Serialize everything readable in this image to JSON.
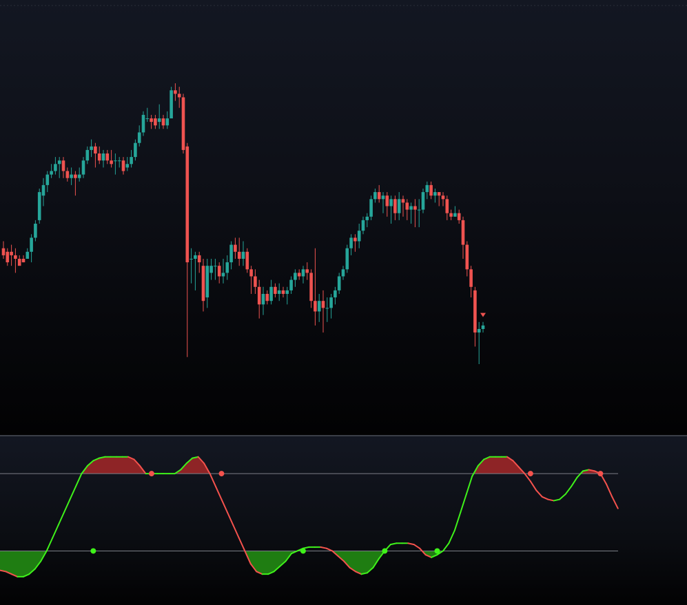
{
  "colors": {
    "bull": "#26a69a",
    "bear": "#ef5350",
    "osc_up": "#3ff21a",
    "osc_down": "#f4524d",
    "fill_high": "#8e2426",
    "fill_low": "#1f7d12",
    "level_line": "#7c7f87"
  },
  "chart_data": [
    {
      "type": "candlestick",
      "title": "",
      "grid": false,
      "ylim": [
        0,
        100
      ],
      "candles": [
        [
          2,
          43,
          41,
          45,
          40
        ],
        [
          3,
          42,
          39,
          43,
          38
        ],
        [
          4,
          42,
          41,
          44,
          38
        ],
        [
          5,
          41,
          40,
          43,
          36
        ],
        [
          6,
          40,
          38,
          41,
          39
        ],
        [
          7,
          40,
          39,
          41,
          39
        ],
        [
          8,
          40,
          42,
          43,
          40
        ],
        [
          9,
          42,
          46,
          47,
          39
        ],
        [
          10,
          46,
          50,
          51,
          45
        ],
        [
          11,
          51,
          59,
          60,
          50
        ],
        [
          12,
          58,
          61,
          63,
          55
        ],
        [
          13,
          61,
          64,
          65,
          59
        ],
        [
          14,
          64,
          65,
          67,
          63
        ],
        [
          15,
          65,
          67,
          69,
          64
        ],
        [
          16,
          67,
          68,
          69,
          63
        ],
        [
          17,
          68,
          65,
          69,
          63
        ],
        [
          18,
          65,
          63,
          66,
          62
        ],
        [
          19,
          63,
          64,
          66,
          61
        ],
        [
          20,
          64,
          63,
          65,
          58
        ],
        [
          21,
          63,
          64,
          66,
          62
        ],
        [
          22,
          64,
          68,
          69,
          63
        ],
        [
          23,
          68,
          71,
          72,
          67
        ],
        [
          24,
          71,
          72,
          74,
          69
        ],
        [
          25,
          72,
          70,
          73,
          66
        ],
        [
          26,
          70,
          68,
          72,
          67
        ],
        [
          27,
          68,
          70,
          71,
          66
        ],
        [
          28,
          70,
          68,
          71,
          67
        ],
        [
          29,
          68,
          67,
          71,
          66
        ],
        [
          30,
          68,
          68,
          70,
          64
        ],
        [
          31,
          68,
          68,
          69,
          66
        ],
        [
          32,
          68,
          65,
          69,
          64
        ],
        [
          33,
          66,
          67,
          69,
          65
        ],
        [
          34,
          67,
          69,
          71,
          66
        ],
        [
          35,
          69,
          73,
          74,
          68
        ],
        [
          36,
          73,
          76,
          78,
          72
        ],
        [
          37,
          76,
          81,
          82,
          75
        ],
        [
          38,
          80,
          80,
          83,
          79
        ],
        [
          39,
          80,
          79,
          81,
          77
        ],
        [
          40,
          80,
          78,
          81,
          77
        ],
        [
          41,
          79,
          80,
          84,
          77
        ],
        [
          42,
          80,
          78,
          81,
          77
        ],
        [
          43,
          78,
          80,
          82,
          77
        ],
        [
          44,
          80,
          88,
          89,
          80
        ],
        [
          45,
          88,
          87,
          90,
          85
        ],
        [
          46,
          87,
          86,
          89,
          83
        ],
        [
          47,
          86,
          71,
          87,
          70
        ],
        [
          48,
          72,
          39,
          73,
          12
        ],
        [
          49,
          40,
          40,
          43,
          33
        ],
        [
          50,
          40,
          41,
          42,
          31
        ],
        [
          51,
          41,
          39,
          42,
          36
        ],
        [
          52,
          38,
          28,
          40,
          25
        ],
        [
          53,
          29,
          38,
          40,
          26
        ],
        [
          54,
          36,
          38,
          40,
          34
        ],
        [
          55,
          38,
          38,
          40,
          34
        ],
        [
          56,
          38,
          35,
          39,
          33
        ],
        [
          57,
          35,
          36,
          40,
          33
        ],
        [
          58,
          36,
          39,
          41,
          34
        ],
        [
          59,
          39,
          44,
          45,
          37
        ],
        [
          60,
          44,
          42,
          46,
          40
        ],
        [
          61,
          42,
          40,
          46,
          38
        ],
        [
          62,
          40,
          42,
          45,
          38
        ],
        [
          63,
          42,
          37,
          43,
          36
        ],
        [
          64,
          37,
          35,
          38,
          30
        ],
        [
          65,
          35,
          32,
          37,
          30
        ],
        [
          66,
          32,
          27,
          34,
          23
        ],
        [
          67,
          27,
          30,
          32,
          24
        ],
        [
          68,
          30,
          28,
          31,
          27
        ],
        [
          69,
          28,
          32,
          34,
          27
        ],
        [
          70,
          32,
          30,
          33,
          29
        ],
        [
          71,
          30,
          31,
          33,
          28
        ],
        [
          72,
          31,
          30,
          32,
          29
        ],
        [
          73,
          30,
          31,
          32,
          27
        ],
        [
          74,
          31,
          34,
          35,
          30
        ],
        [
          75,
          34,
          36,
          37,
          32
        ],
        [
          76,
          36,
          35,
          37,
          34
        ],
        [
          77,
          35,
          37,
          38,
          33
        ],
        [
          78,
          37,
          36,
          39,
          34
        ],
        [
          79,
          36,
          28,
          37,
          26
        ],
        [
          80,
          28,
          25,
          43,
          21
        ],
        [
          81,
          25,
          28,
          30,
          22
        ],
        [
          82,
          28,
          26,
          31,
          19
        ],
        [
          83,
          26,
          26,
          29,
          22
        ],
        [
          84,
          26,
          29,
          30,
          23
        ],
        [
          85,
          29,
          31,
          32,
          27
        ],
        [
          86,
          31,
          35,
          36,
          30
        ],
        [
          87,
          35,
          37,
          38,
          34
        ],
        [
          88,
          37,
          43,
          44,
          36
        ],
        [
          89,
          43,
          46,
          47,
          41
        ],
        [
          90,
          46,
          45,
          47,
          42
        ],
        [
          91,
          45,
          48,
          50,
          43
        ],
        [
          92,
          48,
          51,
          52,
          47
        ],
        [
          93,
          51,
          52,
          53,
          49
        ],
        [
          94,
          52,
          57,
          58,
          51
        ],
        [
          95,
          57,
          59,
          60,
          56
        ],
        [
          96,
          59,
          57,
          61,
          56
        ],
        [
          97,
          57,
          58,
          59,
          53
        ],
        [
          98,
          58,
          55,
          59,
          52
        ],
        [
          99,
          55,
          57,
          58,
          50
        ],
        [
          100,
          57,
          53,
          58,
          51
        ],
        [
          101,
          53,
          57,
          59,
          51
        ],
        [
          102,
          57,
          56,
          58,
          52
        ],
        [
          103,
          56,
          54,
          57,
          51
        ],
        [
          104,
          54,
          55,
          56,
          50
        ],
        [
          105,
          55,
          54,
          57,
          49
        ],
        [
          106,
          54,
          54,
          57,
          49
        ],
        [
          107,
          54,
          59,
          60,
          53
        ],
        [
          108,
          59,
          61,
          62,
          57
        ],
        [
          109,
          61,
          58,
          62,
          57
        ],
        [
          110,
          58,
          59,
          60,
          56
        ],
        [
          111,
          59,
          58,
          59,
          55
        ],
        [
          112,
          58,
          57,
          59,
          55
        ],
        [
          113,
          57,
          53,
          58,
          51
        ],
        [
          114,
          53,
          52,
          54,
          51
        ],
        [
          115,
          52,
          53,
          55,
          52
        ],
        [
          116,
          53,
          51,
          54,
          50
        ],
        [
          117,
          51,
          44,
          52,
          40
        ],
        [
          118,
          44,
          37,
          45,
          35
        ],
        [
          119,
          37,
          32,
          38,
          29
        ],
        [
          120,
          31,
          19,
          32,
          15
        ],
        [
          121,
          19,
          20,
          22,
          10
        ],
        [
          122,
          20,
          21,
          22,
          19
        ]
      ],
      "markers": [
        {
          "x": 122,
          "y": 24,
          "shape": "triangle-down"
        }
      ]
    },
    {
      "type": "line",
      "title": "",
      "grid": false,
      "ylim": [
        -15,
        95
      ],
      "levels": [
        80,
        20
      ],
      "series": [
        {
          "values": [
            [
              0,
              5
            ],
            [
              4,
              4
            ],
            [
              8,
              2
            ],
            [
              12,
              0
            ],
            [
              16,
              0
            ],
            [
              20,
              2
            ],
            [
              24,
              6
            ],
            [
              28,
              12
            ],
            [
              32,
              20
            ],
            [
              36,
              30
            ],
            [
              40,
              40
            ],
            [
              44,
              50
            ],
            [
              48,
              60
            ],
            [
              52,
              70
            ],
            [
              56,
              80
            ],
            [
              60,
              86
            ],
            [
              64,
              90
            ],
            [
              68,
              92
            ],
            [
              72,
              93
            ],
            [
              76,
              93
            ],
            [
              80,
              93
            ],
            [
              84,
              93
            ],
            [
              88,
              93
            ],
            [
              92,
              91
            ],
            [
              96,
              86
            ],
            [
              100,
              80
            ],
            [
              104,
              80
            ],
            [
              108,
              80
            ],
            [
              112,
              80
            ],
            [
              116,
              80
            ],
            [
              120,
              80
            ],
            [
              124,
              83
            ],
            [
              128,
              88
            ],
            [
              132,
              92
            ],
            [
              136,
              93
            ],
            [
              140,
              88
            ],
            [
              144,
              80
            ],
            [
              148,
              70
            ],
            [
              152,
              60
            ],
            [
              156,
              50
            ],
            [
              160,
              40
            ],
            [
              164,
              30
            ],
            [
              168,
              20
            ],
            [
              172,
              10
            ],
            [
              176,
              4
            ],
            [
              180,
              2
            ],
            [
              184,
              2
            ],
            [
              188,
              4
            ],
            [
              192,
              8
            ],
            [
              196,
              12
            ],
            [
              200,
              18
            ],
            [
              204,
              20
            ],
            [
              208,
              22
            ],
            [
              212,
              23
            ],
            [
              216,
              23
            ],
            [
              220,
              23
            ],
            [
              224,
              22
            ],
            [
              228,
              20
            ],
            [
              232,
              16
            ],
            [
              236,
              12
            ],
            [
              240,
              7
            ],
            [
              244,
              4
            ],
            [
              248,
              2
            ],
            [
              252,
              3
            ],
            [
              256,
              7
            ],
            [
              260,
              14
            ],
            [
              264,
              20
            ],
            [
              268,
              25
            ],
            [
              272,
              26
            ],
            [
              276,
              26
            ],
            [
              280,
              26
            ],
            [
              284,
              25
            ],
            [
              288,
              22
            ],
            [
              292,
              17
            ],
            [
              296,
              15
            ],
            [
              300,
              17
            ],
            [
              304,
              20
            ],
            [
              308,
              26
            ],
            [
              312,
              36
            ],
            [
              316,
              50
            ],
            [
              320,
              64
            ],
            [
              324,
              78
            ],
            [
              328,
              86
            ],
            [
              332,
              91
            ],
            [
              336,
              93
            ],
            [
              340,
              93
            ],
            [
              344,
              93
            ],
            [
              348,
              93
            ],
            [
              352,
              90
            ],
            [
              356,
              85
            ],
            [
              360,
              80
            ],
            [
              364,
              74
            ],
            [
              368,
              67
            ],
            [
              372,
              62
            ],
            [
              376,
              60
            ],
            [
              380,
              59
            ],
            [
              384,
              60
            ],
            [
              388,
              64
            ],
            [
              392,
              70
            ],
            [
              396,
              77
            ],
            [
              400,
              82
            ],
            [
              404,
              83
            ],
            [
              408,
              82
            ],
            [
              412,
              80
            ],
            [
              416,
              72
            ],
            [
              420,
              62
            ],
            [
              424,
              53
            ]
          ]
        }
      ],
      "signals": [
        {
          "x": 64,
          "y": 20,
          "type": "buy"
        },
        {
          "x": 104,
          "y": 80,
          "type": "sell"
        },
        {
          "x": 152,
          "y": 80,
          "type": "sell"
        },
        {
          "x": 208,
          "y": 20,
          "type": "buy"
        },
        {
          "x": 264,
          "y": 20,
          "type": "buy"
        },
        {
          "x": 300,
          "y": 20,
          "type": "buy"
        },
        {
          "x": 364,
          "y": 80,
          "type": "sell"
        },
        {
          "x": 412,
          "y": 80,
          "type": "sell"
        }
      ]
    }
  ]
}
